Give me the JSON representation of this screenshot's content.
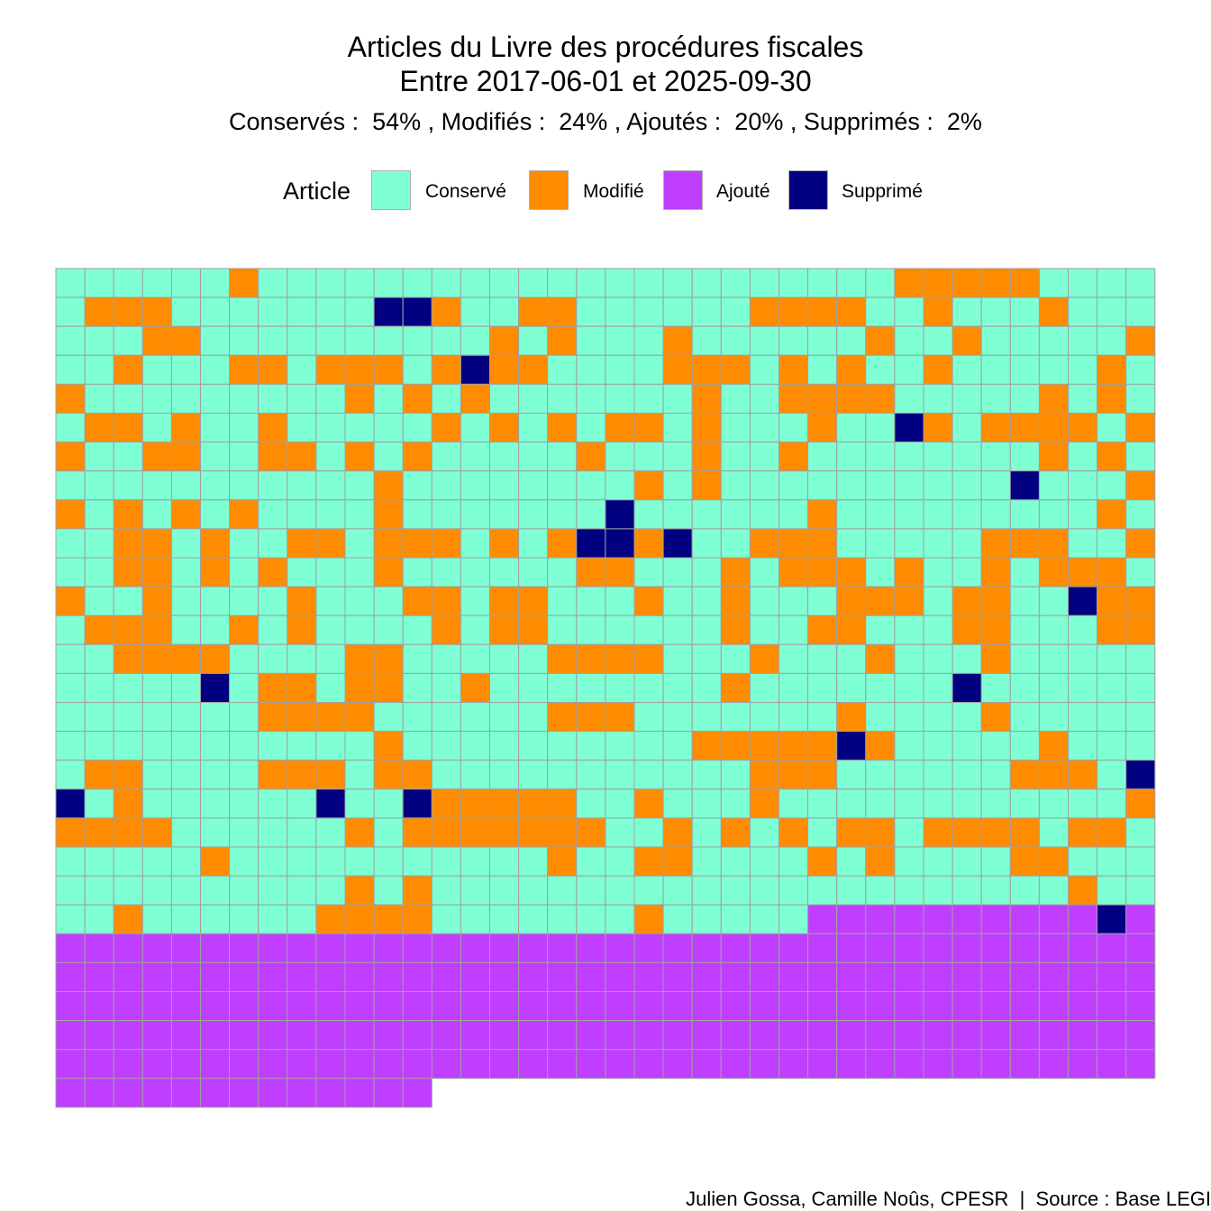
{
  "chart_data": {
    "type": "waffle",
    "title_lines": [
      "Articles du Livre des procédures fiscales",
      "Entre 2017-06-01 et 2025-09-30"
    ],
    "subtitle": "Conservés :  54% , Modifiés :  24% , Ajoutés :  20% , Supprimés :  2%",
    "legend": {
      "title": "Article",
      "position": "top",
      "items": [
        {
          "label": "Conservé",
          "color": "#7fffd4"
        },
        {
          "label": "Modifié",
          "color": "#ff8c00"
        },
        {
          "label": "Ajouté",
          "color": "#bf3eff"
        },
        {
          "label": "Supprimé",
          "color": "#000080"
        }
      ]
    },
    "grid_columns": 38,
    "legend_codes": {
      "C": "Conservé",
      "M": "Modifié",
      "A": "Ajouté",
      "S": "Supprimé"
    },
    "rows": [
      "CCCCCCMCCCCCCCCCCCCCCCCCCCCCCMMMMMCCCCCC",
      "CMMMCCCCCCCSSMCCMMCCCCCCMMMMCCMCCCMCCC",
      "CCCMMCCCCCCCCCCMCMCCCMCCCCCCMCCMCCCCCM",
      "CCMCCCMMCMMMCMSMMCCCCMMMCMCMCCMCCCCCMC",
      "MCCCCCCCCCMCMCMCCCCCCCMCCMMMMCCCCCMCMCM",
      "CMMCMCCMCCCCCMCMCMCMMCMCCCMCCSMCMMMMCM",
      "MCCMMCCMMCMCMCCCCCMCCCMCCMCCCCCCCCMCMC",
      "CCCCCCCCCCCMCCCCCCCCMCMCCCCCCCCCCSCCCM",
      "MCMCMCMCCCCMCCCCCCCSCCCCCCMCCCCCCCCCMCM",
      "CCMMCMCCMMCMMMCMCMSSMSCCMMMCCCCCMMMCCM",
      "CCMMCMCMCCCMCCCCCCMMCCCMCMMMCMCCMCMMMC",
      "MCCMCCCCMCCCMMCMMCCCMCCMCCCMMMCMMCCSMM",
      "CMMMCCMCMCCCCMCMMCCCCCCMCCMMCCCMMCCCMM",
      "CCMMMMCCCCMMCCCCCMMMMCCCMCCCMCCCMCCCCC",
      "CCCCCSCMMCMMCCMCCCCCCCCMCCCCCCCSCCCCCC",
      "CCCCCCCMMMMCCCCCCMMMCCCCCCCMCCCCMCCCCC",
      "CCCCCCCCCCCMCCCCCCCCCCMMMMMSMCCCCCMCCC",
      "CMMCCCCMMMCMMCCCCCCCCCCCMMMCCCCCCMMMCSCM",
      "SCMCCCCCCSCCSMMMMMCCMCCCMCCCCCCCCCCCCMM",
      "MMMMCCCCCCMCMMMMMMMCCMCMCMCMMCMMMMCMMCMCC",
      "CCCCCMCCCCCCCCCCCMCCMMCCCCMCMCCCCMMCCC",
      "CCCCCCCCCCMCMCCCCCCCCCCCCCCCCCCCCCCMCC",
      "CCMCCCCCCMMMMCCCCCCCMCCCCCAAAAAAAAAASAAAAA",
      "AAAAAAAAAAAAAAAAAAAAAAAAAAAAAAAAAAAAAA",
      "AAAAAAAAAAAAAAAAAAAAAAAAAAAAAAAAAAAAAA",
      "AAAAAAAAAAAAAAAAAAAAAAAAAAAAAAAAAAAAAA",
      "AAAAAAAAAAAAAAAAAAAAAAAAAAAAAAAAAAAAAA",
      "AAAAAAAAAAAAAAAAAAAAAAAAAAAAAAAAAAAAAA",
      "AAAAAAAAAAAAA"
    ],
    "cell_border_color": "#a0a0a0",
    "caption": "Julien Gossa, Camille Noûs, CPESR  |  Source : Base LEGI"
  }
}
